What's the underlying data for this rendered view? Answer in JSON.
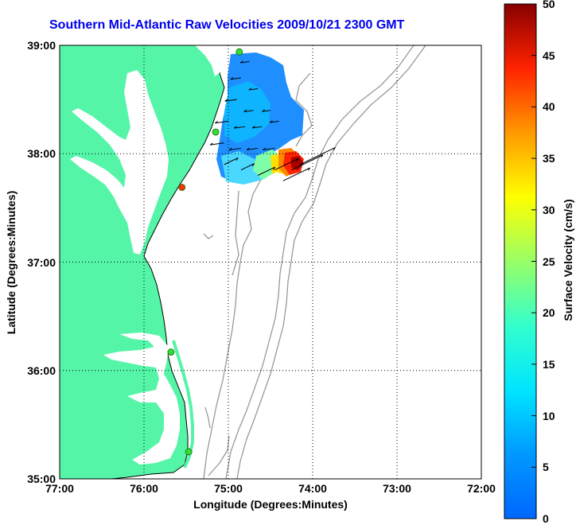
{
  "title": "Southern Mid-Atlantic Raw Velocities 2009/10/21 2300 GMT",
  "x_label": "Longitude (Degrees:Minutes)",
  "y_label": "Latitude (Degrees:Minutes)",
  "colorbar_label": "Surface Velocity (cm/s)",
  "x_ticks": [
    "77:00",
    "76:00",
    "75:00",
    "74:00",
    "73:00",
    "72:00"
  ],
  "y_ticks": [
    "39:00",
    "38:00",
    "37:00",
    "36:00",
    "35:00"
  ],
  "colorbar_ticks": [
    "50",
    "45",
    "40",
    "35",
    "30",
    "25",
    "20",
    "15",
    "10",
    "5",
    "0"
  ],
  "colors": {
    "land": "#55f5a8",
    "coast": "#000000",
    "bathymetry": "#999999",
    "title": "#0000ee",
    "station_active": "#33dd33",
    "station_alert": "#ff3300"
  },
  "map": {
    "lon_range": [
      -77,
      -72
    ],
    "lat_range": [
      35,
      39
    ],
    "grid": true
  },
  "colorbar": {
    "min": 0,
    "max": 50,
    "colormap": "jet"
  },
  "stations": [
    {
      "lon": -74.87,
      "lat": 38.94,
      "status": "active"
    },
    {
      "lon": -75.15,
      "lat": 38.2,
      "status": "active"
    },
    {
      "lon": -75.55,
      "lat": 37.69,
      "status": "alert"
    },
    {
      "lon": -75.68,
      "lat": 36.17,
      "status": "active"
    },
    {
      "lon": -75.47,
      "lat": 35.25,
      "status": "active"
    }
  ],
  "chart_data": {
    "type": "heatmap",
    "title": "Southern Mid-Atlantic Raw Velocities 2009/10/21 2300 GMT",
    "xlabel": "Longitude (Degrees:Minutes)",
    "ylabel": "Latitude (Degrees:Minutes)",
    "xlim": [
      -77,
      -72
    ],
    "ylim": [
      35,
      39
    ],
    "colorbar": {
      "label": "Surface Velocity (cm/s)",
      "range": [
        0,
        50
      ]
    },
    "velocity_field": [
      {
        "lon": -74.75,
        "lat": 38.85,
        "speed": 6
      },
      {
        "lon": -74.85,
        "lat": 38.7,
        "speed": 8
      },
      {
        "lon": -74.65,
        "lat": 38.6,
        "speed": 6
      },
      {
        "lon": -74.9,
        "lat": 38.5,
        "speed": 10
      },
      {
        "lon": -74.7,
        "lat": 38.4,
        "speed": 7
      },
      {
        "lon": -74.5,
        "lat": 38.4,
        "speed": 5
      },
      {
        "lon": -75.0,
        "lat": 38.3,
        "speed": 12
      },
      {
        "lon": -74.8,
        "lat": 38.25,
        "speed": 9
      },
      {
        "lon": -74.6,
        "lat": 38.25,
        "speed": 7
      },
      {
        "lon": -74.4,
        "lat": 38.3,
        "speed": 6
      },
      {
        "lon": -75.05,
        "lat": 38.1,
        "speed": 13
      },
      {
        "lon": -74.85,
        "lat": 38.05,
        "speed": 10
      },
      {
        "lon": -74.65,
        "lat": 38.05,
        "speed": 9
      },
      {
        "lon": -74.45,
        "lat": 38.05,
        "speed": 10
      },
      {
        "lon": -75.05,
        "lat": 37.9,
        "speed": 15
      },
      {
        "lon": -74.85,
        "lat": 37.85,
        "speed": 14
      },
      {
        "lon": -74.65,
        "lat": 37.8,
        "speed": 20
      },
      {
        "lon": -74.45,
        "lat": 37.85,
        "speed": 30
      },
      {
        "lon": -74.25,
        "lat": 37.85,
        "speed": 42
      },
      {
        "lon": -74.15,
        "lat": 37.9,
        "speed": 48
      },
      {
        "lon": -74.35,
        "lat": 37.75,
        "speed": 35
      }
    ]
  }
}
